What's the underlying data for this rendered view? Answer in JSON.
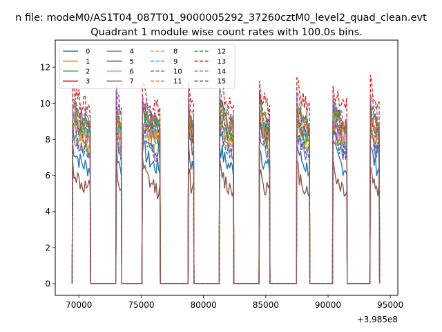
{
  "chart_data": {
    "type": "line",
    "suptitle": "n file: modeM0/AS1T04_087T01_9000005292_37260cztM0_level2_quad_clean.evt",
    "title": "Quadrant 1 module wise count rates with 100.0s bins.",
    "xlabel": "",
    "ylabel": "",
    "x_offset_label": "+3.985e8",
    "xlim": [
      68100,
      95600
    ],
    "ylim": [
      -0.65,
      13.5
    ],
    "x_ticks": [
      70000,
      75000,
      80000,
      85000,
      90000,
      95000
    ],
    "x_tick_labels": [
      "70000",
      "75000",
      "80000",
      "85000",
      "90000",
      "95000"
    ],
    "y_ticks": [
      0,
      2,
      4,
      6,
      8,
      10,
      12
    ],
    "y_tick_labels": [
      "0",
      "2",
      "4",
      "6",
      "8",
      "10",
      "12"
    ],
    "grid": false,
    "legend_position": "top-left",
    "legend_columns": 4,
    "orbits": [
      {
        "on_start": 69500,
        "on_end": 70900,
        "off_end": 72950
      },
      {
        "on_start": 73000,
        "on_end": 73400,
        "off_end": 75050
      },
      {
        "on_start": 75100,
        "on_end": 76500,
        "off_end": 78750
      },
      {
        "on_start": 78800,
        "on_end": 79200,
        "off_end": 81200
      },
      {
        "on_start": 81300,
        "on_end": 82400,
        "off_end": 84400
      },
      {
        "on_start": 84500,
        "on_end": 85300,
        "off_end": 87450
      },
      {
        "on_start": 87500,
        "on_end": 88500,
        "off_end": 90350
      },
      {
        "on_start": 90400,
        "on_end": 91500,
        "off_end": 93350
      },
      {
        "on_start": 93400,
        "on_end": 94100,
        "off_end": null
      }
    ],
    "series": [
      {
        "name": "0",
        "color": "#1f77b4",
        "dash": "solid",
        "level": 6.2
      },
      {
        "name": "1",
        "color": "#ff7f0e",
        "dash": "solid",
        "level": 7.6
      },
      {
        "name": "2",
        "color": "#2ca02c",
        "dash": "solid",
        "level": 8.0
      },
      {
        "name": "3",
        "color": "#d62728",
        "dash": "solid",
        "level": 8.6
      },
      {
        "name": "4",
        "color": "#9467bd",
        "dash": "solid",
        "level": 7.0
      },
      {
        "name": "5",
        "color": "#8c564b",
        "dash": "solid",
        "level": 5.0
      },
      {
        "name": "6",
        "color": "#e377c2",
        "dash": "solid",
        "level": 7.8
      },
      {
        "name": "7",
        "color": "#7f7f7f",
        "dash": "solid",
        "level": 8.4
      },
      {
        "name": "8",
        "color": "#bcbd22",
        "dash": "dashed",
        "level": 7.4
      },
      {
        "name": "9",
        "color": "#17becf",
        "dash": "dashed",
        "level": 8.2
      },
      {
        "name": "10",
        "color": "#1f77b4",
        "dash": "dashed",
        "level": 7.1
      },
      {
        "name": "11",
        "color": "#ff7f0e",
        "dash": "dashed",
        "level": 8.3
      },
      {
        "name": "12",
        "color": "#2ca02c",
        "dash": "dashed",
        "level": 8.7
      },
      {
        "name": "13",
        "color": "#d62728",
        "dash": "dashed",
        "level": 9.6
      },
      {
        "name": "14",
        "color": "#9467bd",
        "dash": "dashed",
        "level": 8.9
      },
      {
        "name": "15",
        "color": "#8c564b",
        "dash": "dashed",
        "level": 8.0
      }
    ]
  }
}
